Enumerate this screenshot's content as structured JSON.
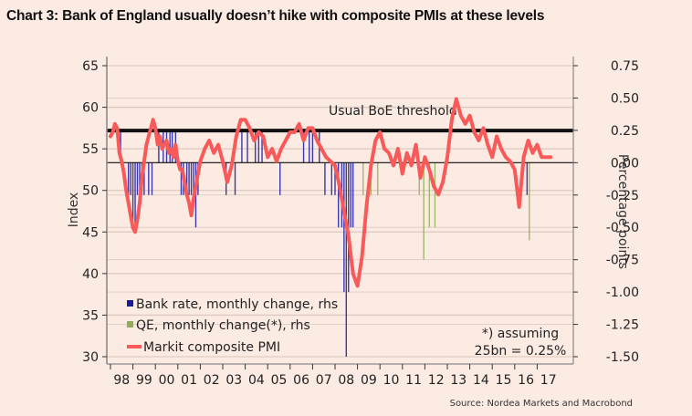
{
  "chart_data": {
    "type": "line",
    "title": "Chart 3: Bank of England usually doesn’t hike with composite PMIs at these levels",
    "source": "Source: Nordea Markets and Macrobond",
    "ylabel_left": "Index",
    "ylabel_right": "Percentage points",
    "ylim_left": [
      30,
      65
    ],
    "ylim_right": [
      -1.5,
      0.75
    ],
    "yticks_left": [
      "65",
      "60",
      "55",
      "50",
      "45",
      "40",
      "35",
      "30"
    ],
    "yticks_right": [
      "0.75",
      "0.50",
      "0.25",
      "0.00",
      "-0.25",
      "-0.50",
      "-0.75",
      "-1.00",
      "-1.25",
      "-1.50"
    ],
    "yticks_left_values": [
      65,
      60,
      55,
      50,
      45,
      40,
      35,
      30
    ],
    "yticks_right_values": [
      0.75,
      0.5,
      0.25,
      0,
      -0.25,
      -0.5,
      -0.75,
      -1.0,
      -1.25,
      -1.5
    ],
    "xticks": [
      "98",
      "99",
      "00",
      "01",
      "02",
      "03",
      "04",
      "05",
      "06",
      "07",
      "08",
      "09",
      "10",
      "11",
      "12",
      "13",
      "14",
      "15",
      "16",
      "17"
    ],
    "xlim": [
      1998.0,
      2017.8
    ],
    "grid": true,
    "legend_position": "bottom-left",
    "legend": [
      {
        "label": "Bank rate, monthly change, rhs",
        "color": "#1a1a9c",
        "marker": "square"
      },
      {
        "label": "QE, monthly change(*), rhs",
        "color": "#8fae5a",
        "marker": "square"
      },
      {
        "label": "Markit composite PMI",
        "color": "#f85a5a",
        "marker": "line"
      }
    ],
    "threshold": {
      "label": "Usual BoE threshold",
      "value": 57.2,
      "axis": "left"
    },
    "annotation": [
      "*) assuming",
      "25bn = 0.25%"
    ],
    "series": [
      {
        "name": "Markit composite PMI",
        "axis": "left",
        "color": "#f85a5a",
        "x": [
          1998.0,
          1998.1,
          1998.2,
          1998.3,
          1998.4,
          1998.5,
          1998.6,
          1998.7,
          1998.8,
          1998.9,
          1999.0,
          1999.1,
          1999.2,
          1999.3,
          1999.4,
          1999.5,
          1999.6,
          1999.7,
          1999.8,
          1999.9,
          2000.0,
          2000.1,
          2000.2,
          2000.3,
          2000.4,
          2000.5,
          2000.6,
          2000.7,
          2000.8,
          2000.9,
          2001.0,
          2001.1,
          2001.2,
          2001.3,
          2001.4,
          2001.5,
          2001.6,
          2001.7,
          2001.8,
          2001.9,
          2002.0,
          2002.2,
          2002.4,
          2002.6,
          2002.8,
          2003.0,
          2003.2,
          2003.4,
          2003.6,
          2003.8,
          2004.0,
          2004.2,
          2004.4,
          2004.6,
          2004.8,
          2005.0,
          2005.2,
          2005.4,
          2005.6,
          2005.8,
          2006.0,
          2006.2,
          2006.4,
          2006.6,
          2006.8,
          2007.0,
          2007.2,
          2007.4,
          2007.6,
          2007.8,
          2008.0,
          2008.2,
          2008.4,
          2008.6,
          2008.8,
          2009.0,
          2009.2,
          2009.4,
          2009.6,
          2009.8,
          2010.0,
          2010.2,
          2010.4,
          2010.6,
          2010.8,
          2011.0,
          2011.2,
          2011.4,
          2011.6,
          2011.8,
          2012.0,
          2012.2,
          2012.4,
          2012.6,
          2012.8,
          2013.0,
          2013.2,
          2013.4,
          2013.6,
          2013.8,
          2014.0,
          2014.2,
          2014.4,
          2014.6,
          2014.8,
          2015.0,
          2015.2,
          2015.4,
          2015.6,
          2015.8,
          2016.0,
          2016.2,
          2016.4,
          2016.5,
          2016.6,
          2016.8,
          2017.0,
          2017.2,
          2017.4,
          2017.6
        ],
        "values": [
          56.5,
          57.0,
          58.0,
          57.5,
          54.5,
          53.5,
          52.0,
          50.0,
          48.5,
          47.0,
          45.5,
          45.0,
          46.5,
          48.5,
          51.5,
          53.5,
          55.5,
          56.5,
          57.5,
          58.5,
          57.5,
          55.5,
          56.5,
          55.0,
          55.5,
          56.0,
          54.5,
          55.0,
          54.0,
          55.5,
          53.5,
          52.5,
          52.5,
          51.0,
          49.5,
          48.5,
          47.0,
          49.0,
          50.5,
          52.0,
          53.5,
          55.0,
          56.0,
          54.5,
          55.5,
          53.5,
          51.0,
          53.0,
          56.5,
          58.5,
          58.5,
          57.5,
          56.0,
          57.0,
          56.5,
          54.0,
          55.0,
          53.5,
          55.0,
          56.0,
          57.0,
          57.0,
          58.0,
          56.0,
          57.5,
          57.5,
          56.0,
          55.0,
          54.0,
          53.5,
          53.0,
          50.5,
          47.5,
          44.5,
          40.0,
          38.5,
          42.0,
          48.0,
          53.0,
          56.0,
          57.0,
          55.0,
          54.5,
          53.0,
          55.0,
          52.0,
          54.5,
          53.0,
          55.5,
          51.5,
          54.0,
          52.5,
          50.5,
          49.5,
          51.0,
          54.0,
          58.5,
          61.0,
          59.0,
          58.0,
          59.0,
          57.0,
          56.0,
          57.5,
          55.5,
          54.0,
          56.5,
          55.0,
          54.0,
          53.5,
          52.5,
          48.0,
          54.0,
          55.0,
          56.0,
          54.5,
          55.5,
          54.0,
          54.0,
          54.0
        ]
      },
      {
        "name": "Bank rate, monthly change, rhs",
        "axis": "right",
        "color": "#1a1a9c",
        "x": [
          1998.45,
          1998.8,
          1998.9,
          1999.0,
          1999.1,
          1999.2,
          1999.3,
          1999.4,
          1999.5,
          1999.7,
          1999.85,
          2000.15,
          2000.35,
          2000.5,
          2000.65,
          2000.75,
          2000.9,
          2001.15,
          2001.25,
          2001.4,
          2001.5,
          2001.6,
          2001.7,
          2001.8,
          2001.9,
          2003.15,
          2003.55,
          2003.85,
          2004.1,
          2004.45,
          2004.6,
          2004.75,
          2005.55,
          2006.6,
          2006.85,
          2007.0,
          2007.3,
          2007.55,
          2007.85,
          2008.0,
          2008.15,
          2008.3,
          2008.4,
          2008.5,
          2008.6,
          2008.7,
          2008.8,
          2016.55
        ],
        "values": [
          0.25,
          -0.25,
          -0.25,
          -0.5,
          -0.5,
          -0.25,
          -0.25,
          -0.25,
          -0.25,
          -0.25,
          -0.25,
          0.25,
          0.25,
          0.25,
          0.25,
          0.25,
          0.25,
          -0.25,
          -0.25,
          -0.25,
          -0.25,
          -0.25,
          -0.25,
          -0.5,
          -0.25,
          -0.25,
          -0.25,
          0.25,
          0.25,
          0.25,
          0.25,
          0.25,
          -0.25,
          0.25,
          0.25,
          0.25,
          0.25,
          -0.25,
          -0.25,
          -0.25,
          -0.5,
          -0.5,
          -1.0,
          -1.5,
          -1.0,
          -0.5,
          -0.5,
          -0.25
        ]
      },
      {
        "name": "QE, monthly change(*), rhs",
        "axis": "right",
        "color": "#8fae5a",
        "x": [
          2009.25,
          2009.6,
          2009.9,
          2011.75,
          2011.95,
          2012.2,
          2012.45,
          2016.65
        ],
        "values": [
          -0.25,
          -0.25,
          -0.25,
          -0.25,
          -0.75,
          -0.5,
          -0.5,
          -0.6
        ]
      }
    ]
  }
}
